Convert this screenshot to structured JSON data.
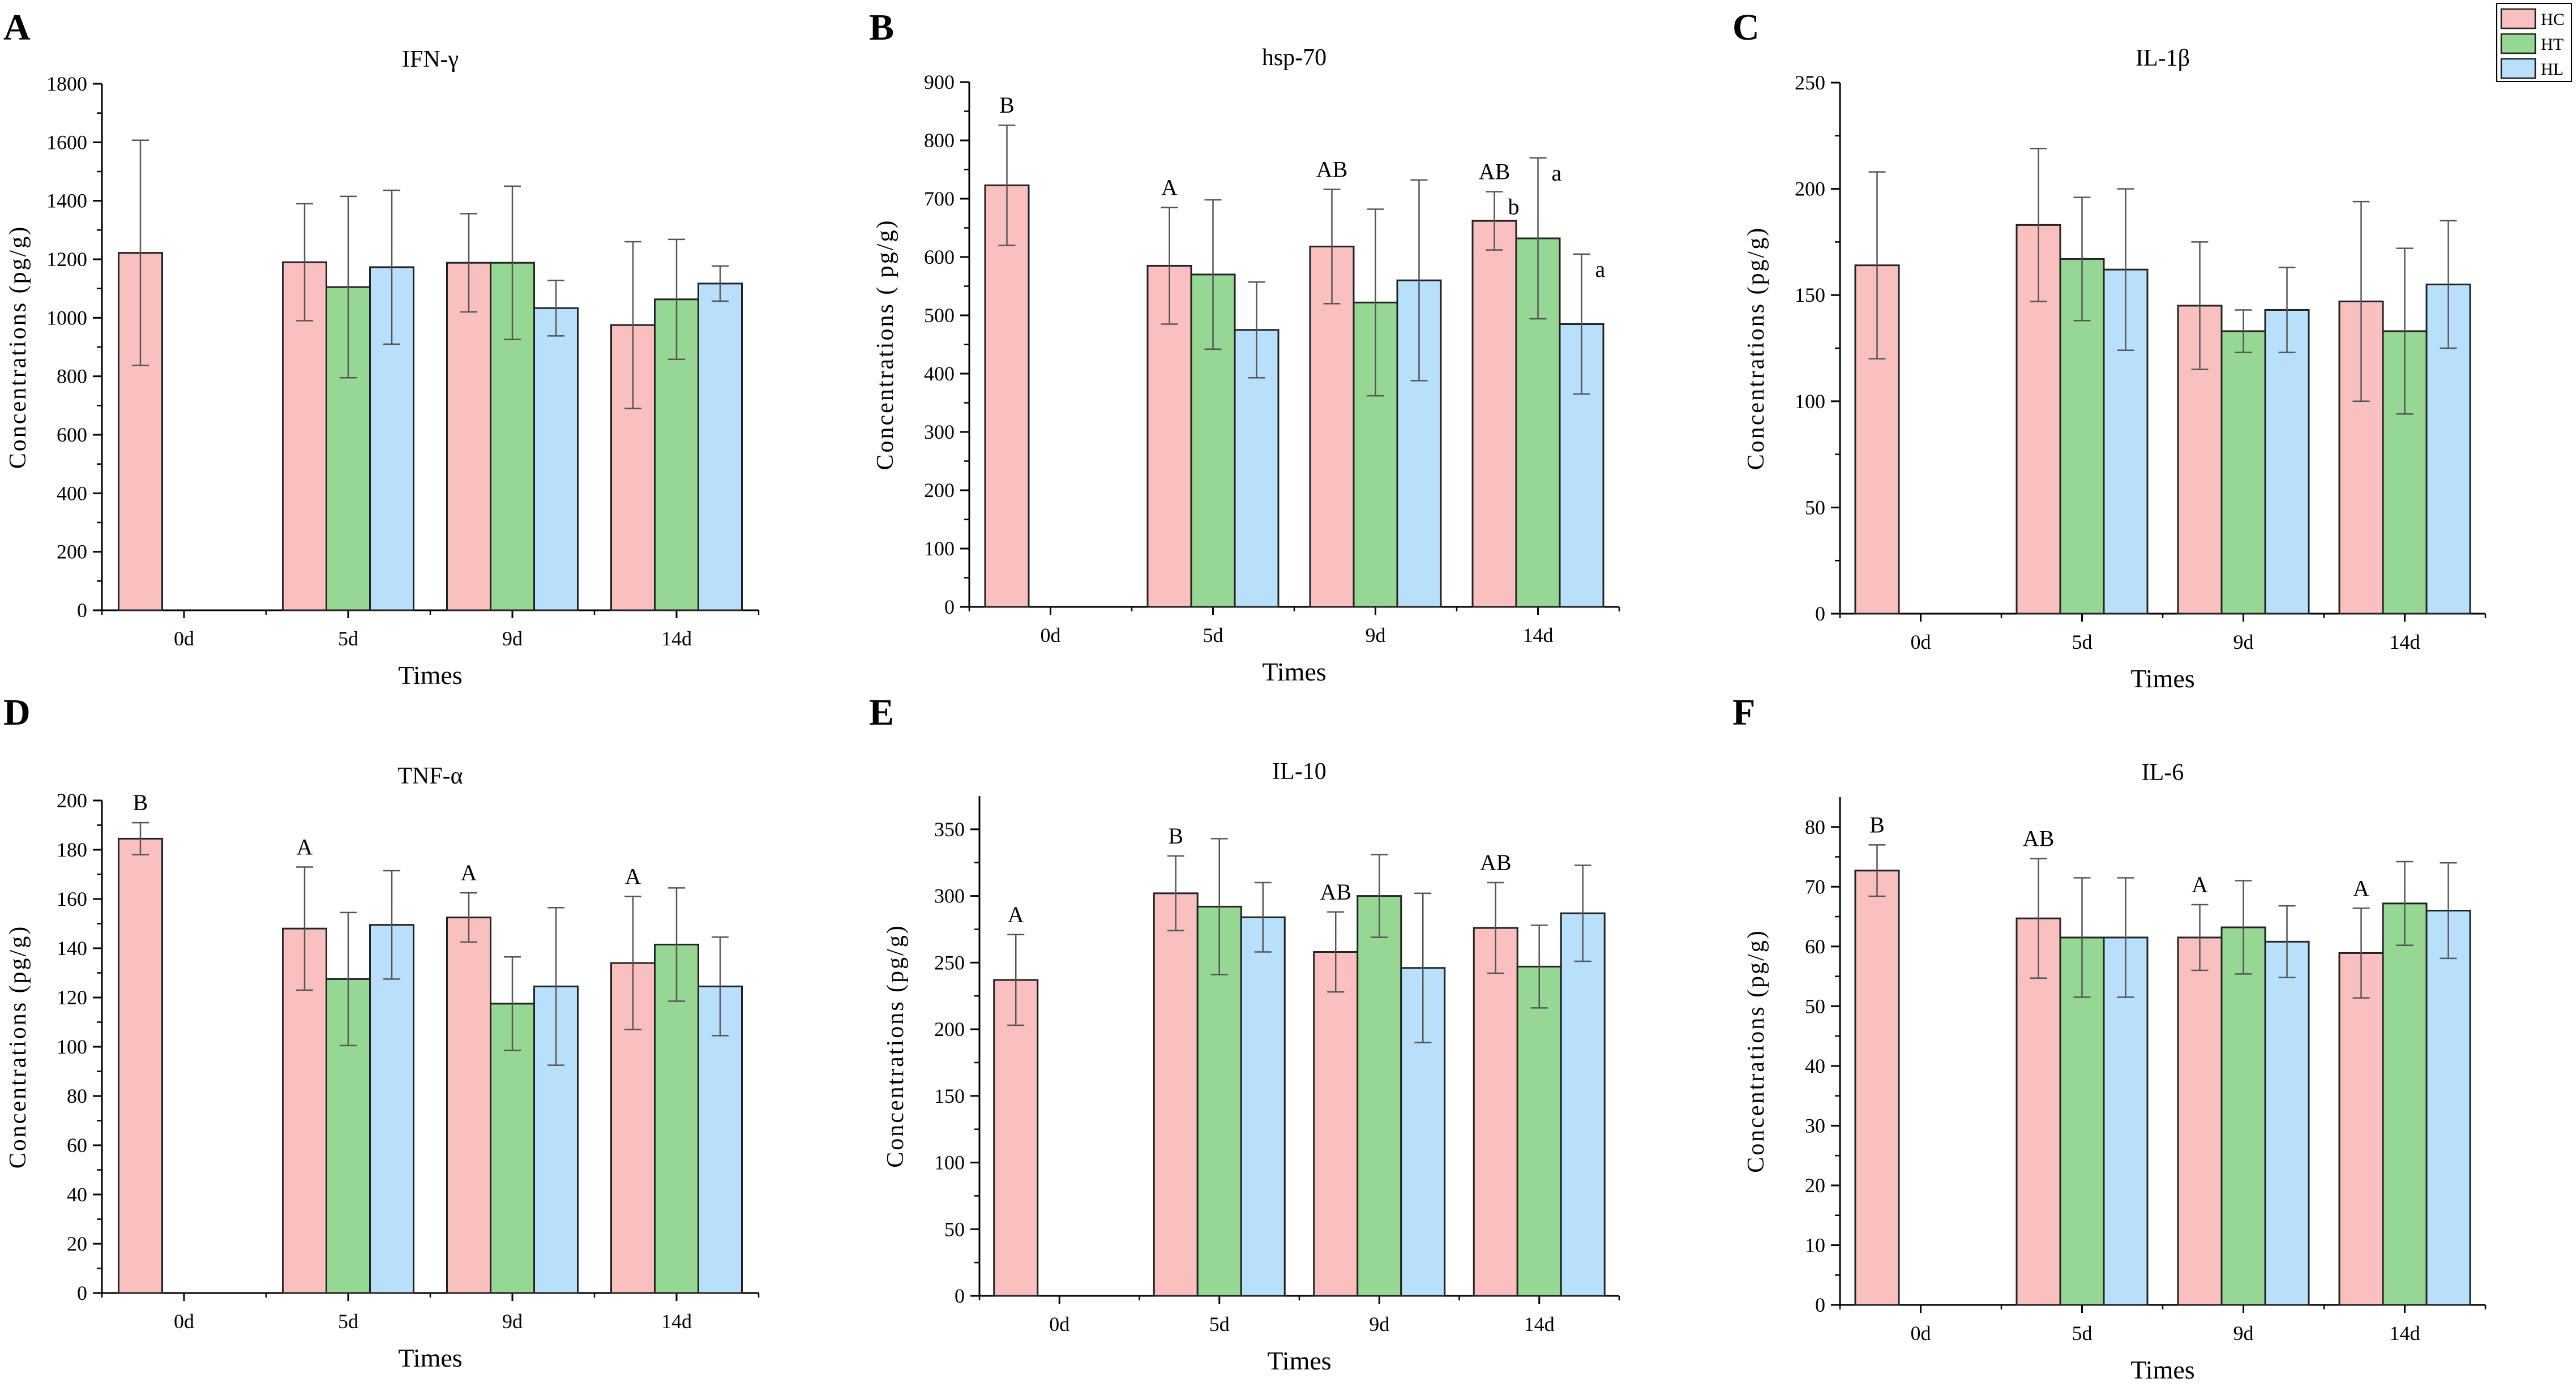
{
  "colors": {
    "HC": "#fac0c0",
    "HT": "#97d794",
    "HL": "#b8e0fb",
    "edge": "#222222",
    "errorbar": "#555555"
  },
  "legend": [
    {
      "key": "HC",
      "label": "HC"
    },
    {
      "key": "HT",
      "label": "HT"
    },
    {
      "key": "HL",
      "label": "HL"
    }
  ],
  "chart_data": [
    {
      "panel": "A",
      "type": "bar",
      "title": "IFN-γ",
      "xlabel": "Times",
      "ylabel": "Concentrations (pg/g)",
      "categories": [
        "0d",
        "5d",
        "9d",
        "14d"
      ],
      "ylim": [
        0,
        1800
      ],
      "yticks": [
        0,
        200,
        400,
        600,
        800,
        1000,
        1200,
        1400,
        1600,
        1800
      ],
      "series": [
        {
          "name": "HC",
          "values": [
            1222,
            1190,
            1188,
            975
          ],
          "errors": [
            385,
            200,
            168,
            285
          ]
        },
        {
          "name": "HT",
          "values": [
            null,
            1105,
            1188,
            1063
          ],
          "errors": [
            null,
            310,
            262,
            205
          ]
        },
        {
          "name": "HL",
          "values": [
            null,
            1173,
            1033,
            1117
          ],
          "errors": [
            null,
            263,
            95,
            60
          ]
        }
      ],
      "annotations": []
    },
    {
      "panel": "B",
      "type": "bar",
      "title": "hsp-70",
      "xlabel": "Times",
      "ylabel": "Concentrations ( pg/g)",
      "categories": [
        "0d",
        "5d",
        "9d",
        "14d"
      ],
      "ylim": [
        0,
        900
      ],
      "yticks": [
        0,
        100,
        200,
        300,
        400,
        500,
        600,
        700,
        800,
        900
      ],
      "series": [
        {
          "name": "HC",
          "values": [
            723,
            585,
            618,
            662
          ],
          "errors": [
            103,
            100,
            98,
            50
          ]
        },
        {
          "name": "HT",
          "values": [
            null,
            570,
            522,
            632
          ],
          "errors": [
            null,
            128,
            160,
            138
          ]
        },
        {
          "name": "HL",
          "values": [
            null,
            475,
            560,
            485
          ],
          "errors": [
            null,
            82,
            172,
            120
          ]
        }
      ],
      "annotations": [
        {
          "cat": 0,
          "series": 0,
          "text": "B"
        },
        {
          "cat": 1,
          "series": 0,
          "text": "A"
        },
        {
          "cat": 2,
          "series": 0,
          "text": "AB"
        },
        {
          "cat": 3,
          "series": 0,
          "text": "AB"
        },
        {
          "cat": 3,
          "series": 0,
          "text": "b",
          "place": "right"
        },
        {
          "cat": 3,
          "series": 1,
          "text": "a",
          "place": "right"
        },
        {
          "cat": 3,
          "series": 2,
          "text": "a",
          "place": "right"
        }
      ]
    },
    {
      "panel": "C",
      "type": "bar",
      "title": "IL-1β",
      "xlabel": "Times",
      "ylabel": "Concentrations (pg/g)",
      "categories": [
        "0d",
        "5d",
        "9d",
        "14d"
      ],
      "ylim": [
        0,
        250
      ],
      "yticks": [
        0,
        50,
        100,
        150,
        200,
        250
      ],
      "series": [
        {
          "name": "HC",
          "values": [
            164,
            183,
            145,
            147
          ],
          "errors": [
            44,
            36,
            30,
            47
          ]
        },
        {
          "name": "HT",
          "values": [
            null,
            167,
            133,
            133
          ],
          "errors": [
            null,
            29,
            10,
            39
          ]
        },
        {
          "name": "HL",
          "values": [
            null,
            162,
            143,
            155
          ],
          "errors": [
            null,
            38,
            20,
            30
          ]
        }
      ],
      "annotations": []
    },
    {
      "panel": "D",
      "type": "bar",
      "title": "TNF-α",
      "xlabel": "Times",
      "ylabel": "Concentrations (pg/g)",
      "categories": [
        "0d",
        "5d",
        "9d",
        "14d"
      ],
      "ylim": [
        0,
        200
      ],
      "yticks": [
        0,
        20,
        40,
        60,
        80,
        100,
        120,
        140,
        160,
        180,
        200
      ],
      "series": [
        {
          "name": "HC",
          "values": [
            184.5,
            148,
            152.5,
            134
          ],
          "errors": [
            6.5,
            25,
            10,
            27
          ]
        },
        {
          "name": "HT",
          "values": [
            null,
            127.5,
            117.5,
            141.5
          ],
          "errors": [
            null,
            27,
            19,
            23
          ]
        },
        {
          "name": "HL",
          "values": [
            null,
            149.5,
            124.5,
            124.5
          ],
          "errors": [
            null,
            22,
            32,
            20
          ]
        }
      ],
      "annotations": [
        {
          "cat": 0,
          "series": 0,
          "text": "B"
        },
        {
          "cat": 1,
          "series": 0,
          "text": "A"
        },
        {
          "cat": 2,
          "series": 0,
          "text": "A"
        },
        {
          "cat": 3,
          "series": 0,
          "text": "A"
        }
      ]
    },
    {
      "panel": "E",
      "type": "bar",
      "title": "IL-10",
      "xlabel": "Times",
      "ylabel": "Concentrations (pg/g)",
      "categories": [
        "0d",
        "5d",
        "9d",
        "14d"
      ],
      "ylim": [
        0,
        375
      ],
      "yticks": [
        0,
        50,
        100,
        150,
        200,
        250,
        300,
        350
      ],
      "series": [
        {
          "name": "HC",
          "values": [
            237,
            302,
            258,
            276
          ],
          "errors": [
            34,
            28,
            30,
            34
          ]
        },
        {
          "name": "HT",
          "values": [
            null,
            292,
            300,
            247
          ],
          "errors": [
            null,
            51,
            31,
            31
          ]
        },
        {
          "name": "HL",
          "values": [
            null,
            284,
            246,
            287
          ],
          "errors": [
            null,
            26,
            56,
            36
          ]
        }
      ],
      "annotations": [
        {
          "cat": 0,
          "series": 0,
          "text": "A"
        },
        {
          "cat": 1,
          "series": 0,
          "text": "B"
        },
        {
          "cat": 2,
          "series": 0,
          "text": "AB"
        },
        {
          "cat": 3,
          "series": 0,
          "text": "AB"
        }
      ]
    },
    {
      "panel": "F",
      "type": "bar",
      "title": "IL-6",
      "xlabel": "Times",
      "ylabel": "Concentrations (pg/g)",
      "categories": [
        "0d",
        "5d",
        "9d",
        "14d"
      ],
      "ylim": [
        0,
        85
      ],
      "yticks": [
        0,
        10,
        20,
        30,
        40,
        50,
        60,
        70,
        80
      ],
      "series": [
        {
          "name": "HC",
          "values": [
            72.7,
            64.7,
            61.5,
            58.9
          ],
          "errors": [
            4.3,
            10,
            5.5,
            7.5
          ]
        },
        {
          "name": "HT",
          "values": [
            null,
            61.5,
            63.2,
            67.2
          ],
          "errors": [
            null,
            10,
            7.8,
            7
          ]
        },
        {
          "name": "HL",
          "values": [
            null,
            61.5,
            60.8,
            66
          ],
          "errors": [
            null,
            10,
            6,
            8
          ]
        }
      ],
      "annotations": [
        {
          "cat": 0,
          "series": 0,
          "text": "B"
        },
        {
          "cat": 1,
          "series": 0,
          "text": "AB"
        },
        {
          "cat": 2,
          "series": 0,
          "text": "A"
        },
        {
          "cat": 3,
          "series": 0,
          "text": "A"
        }
      ]
    }
  ]
}
